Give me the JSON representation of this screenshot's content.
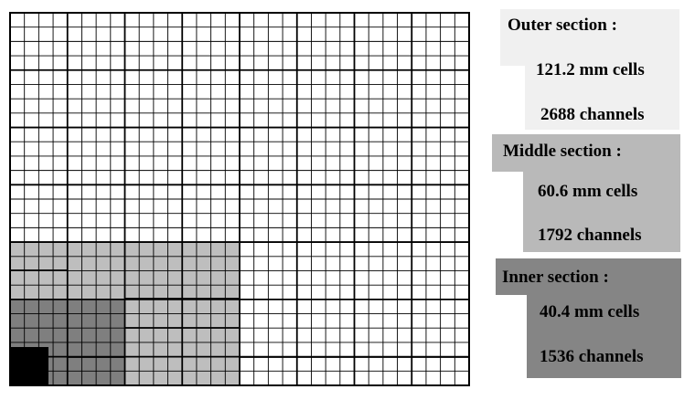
{
  "colors": {
    "outer": "#f0f0f0",
    "middle": "#b9b9b9",
    "inner": "#858585",
    "grid_outer_fill": "#ffffff",
    "grid_middle_fill": "#bebebe",
    "grid_inner_fill": "#7f7f7f",
    "beam_hole": "#000000",
    "line": "#000000"
  },
  "legend": {
    "outer": {
      "title": "Outer  section :",
      "cells": "121.2 mm  cells",
      "channels": "2688  channels"
    },
    "middle": {
      "title": "Middle section :",
      "cells": "60.6 mm  cells",
      "channels": "1792 channels"
    },
    "inner": {
      "title": "Inner section :",
      "cells": "40.4 mm  cells",
      "channels": "1536  channels"
    }
  }
}
